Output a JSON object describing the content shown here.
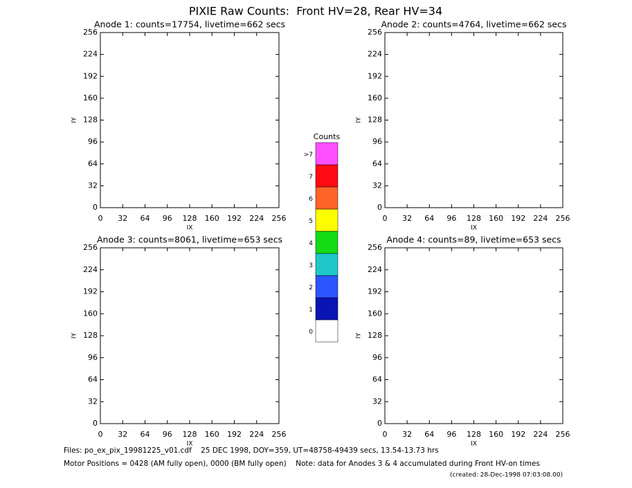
{
  "title": "PIXIE Raw Counts:  Front HV=28, Rear HV=34",
  "chart_data": [
    {
      "type": "image",
      "title": "Anode 1: counts=17754, livetime=662 secs",
      "x_label": "IX",
      "y_label": "IY",
      "xlim": [
        0,
        256
      ],
      "ylim": [
        0,
        256
      ],
      "xticks": [
        0,
        32,
        64,
        96,
        128,
        160,
        192,
        224,
        256
      ],
      "yticks": [
        0,
        32,
        64,
        96,
        128,
        160,
        192,
        224,
        256
      ]
    },
    {
      "type": "image",
      "title": "Anode 2: counts=4764, livetime=662 secs",
      "x_label": "IX",
      "y_label": "IY",
      "xlim": [
        0,
        256
      ],
      "ylim": [
        0,
        256
      ],
      "xticks": [
        0,
        32,
        64,
        96,
        128,
        160,
        192,
        224,
        256
      ],
      "yticks": [
        0,
        32,
        64,
        96,
        128,
        160,
        192,
        224,
        256
      ]
    },
    {
      "type": "image",
      "title": "Anode 3: counts=8061, livetime=653 secs",
      "x_label": "IX",
      "y_label": "IY",
      "xlim": [
        0,
        256
      ],
      "ylim": [
        0,
        256
      ],
      "xticks": [
        0,
        32,
        64,
        96,
        128,
        160,
        192,
        224,
        256
      ],
      "yticks": [
        0,
        32,
        64,
        96,
        128,
        160,
        192,
        224,
        256
      ]
    },
    {
      "type": "image",
      "title": "Anode 4: counts=89, livetime=653 secs",
      "x_label": "IX",
      "y_label": "IY",
      "xlim": [
        0,
        256
      ],
      "ylim": [
        0,
        256
      ],
      "xticks": [
        0,
        32,
        64,
        96,
        128,
        160,
        192,
        224,
        256
      ],
      "yticks": [
        0,
        32,
        64,
        96,
        128,
        160,
        192,
        224,
        256
      ]
    },
    {
      "type": "colorbar",
      "title": "Counts",
      "categories": [
        "0",
        "1",
        "2",
        "3",
        "4",
        "5",
        "6",
        "7",
        ">7"
      ],
      "colors": [
        "#ffffff",
        "#0a14b4",
        "#2d55ff",
        "#1ec8c8",
        "#14dc14",
        "#ffff00",
        "#ff6428",
        "#ff0a14",
        "#ff50ff"
      ]
    }
  ],
  "footer": {
    "line1": "Files: po_ex_pix_19981225_v01.cdf    25 DEC 1998, DOY=359, UT=48758-49439 secs, 13.54-13.73 hrs",
    "line2": "Motor Positions = 0428 (AM fully open), 0000 (BM fully open)    Note: data for Anodes 3 & 4 accumulated during Front HV-on times",
    "created": "(created: 28-Dec-1998 07:03:08.00)"
  }
}
